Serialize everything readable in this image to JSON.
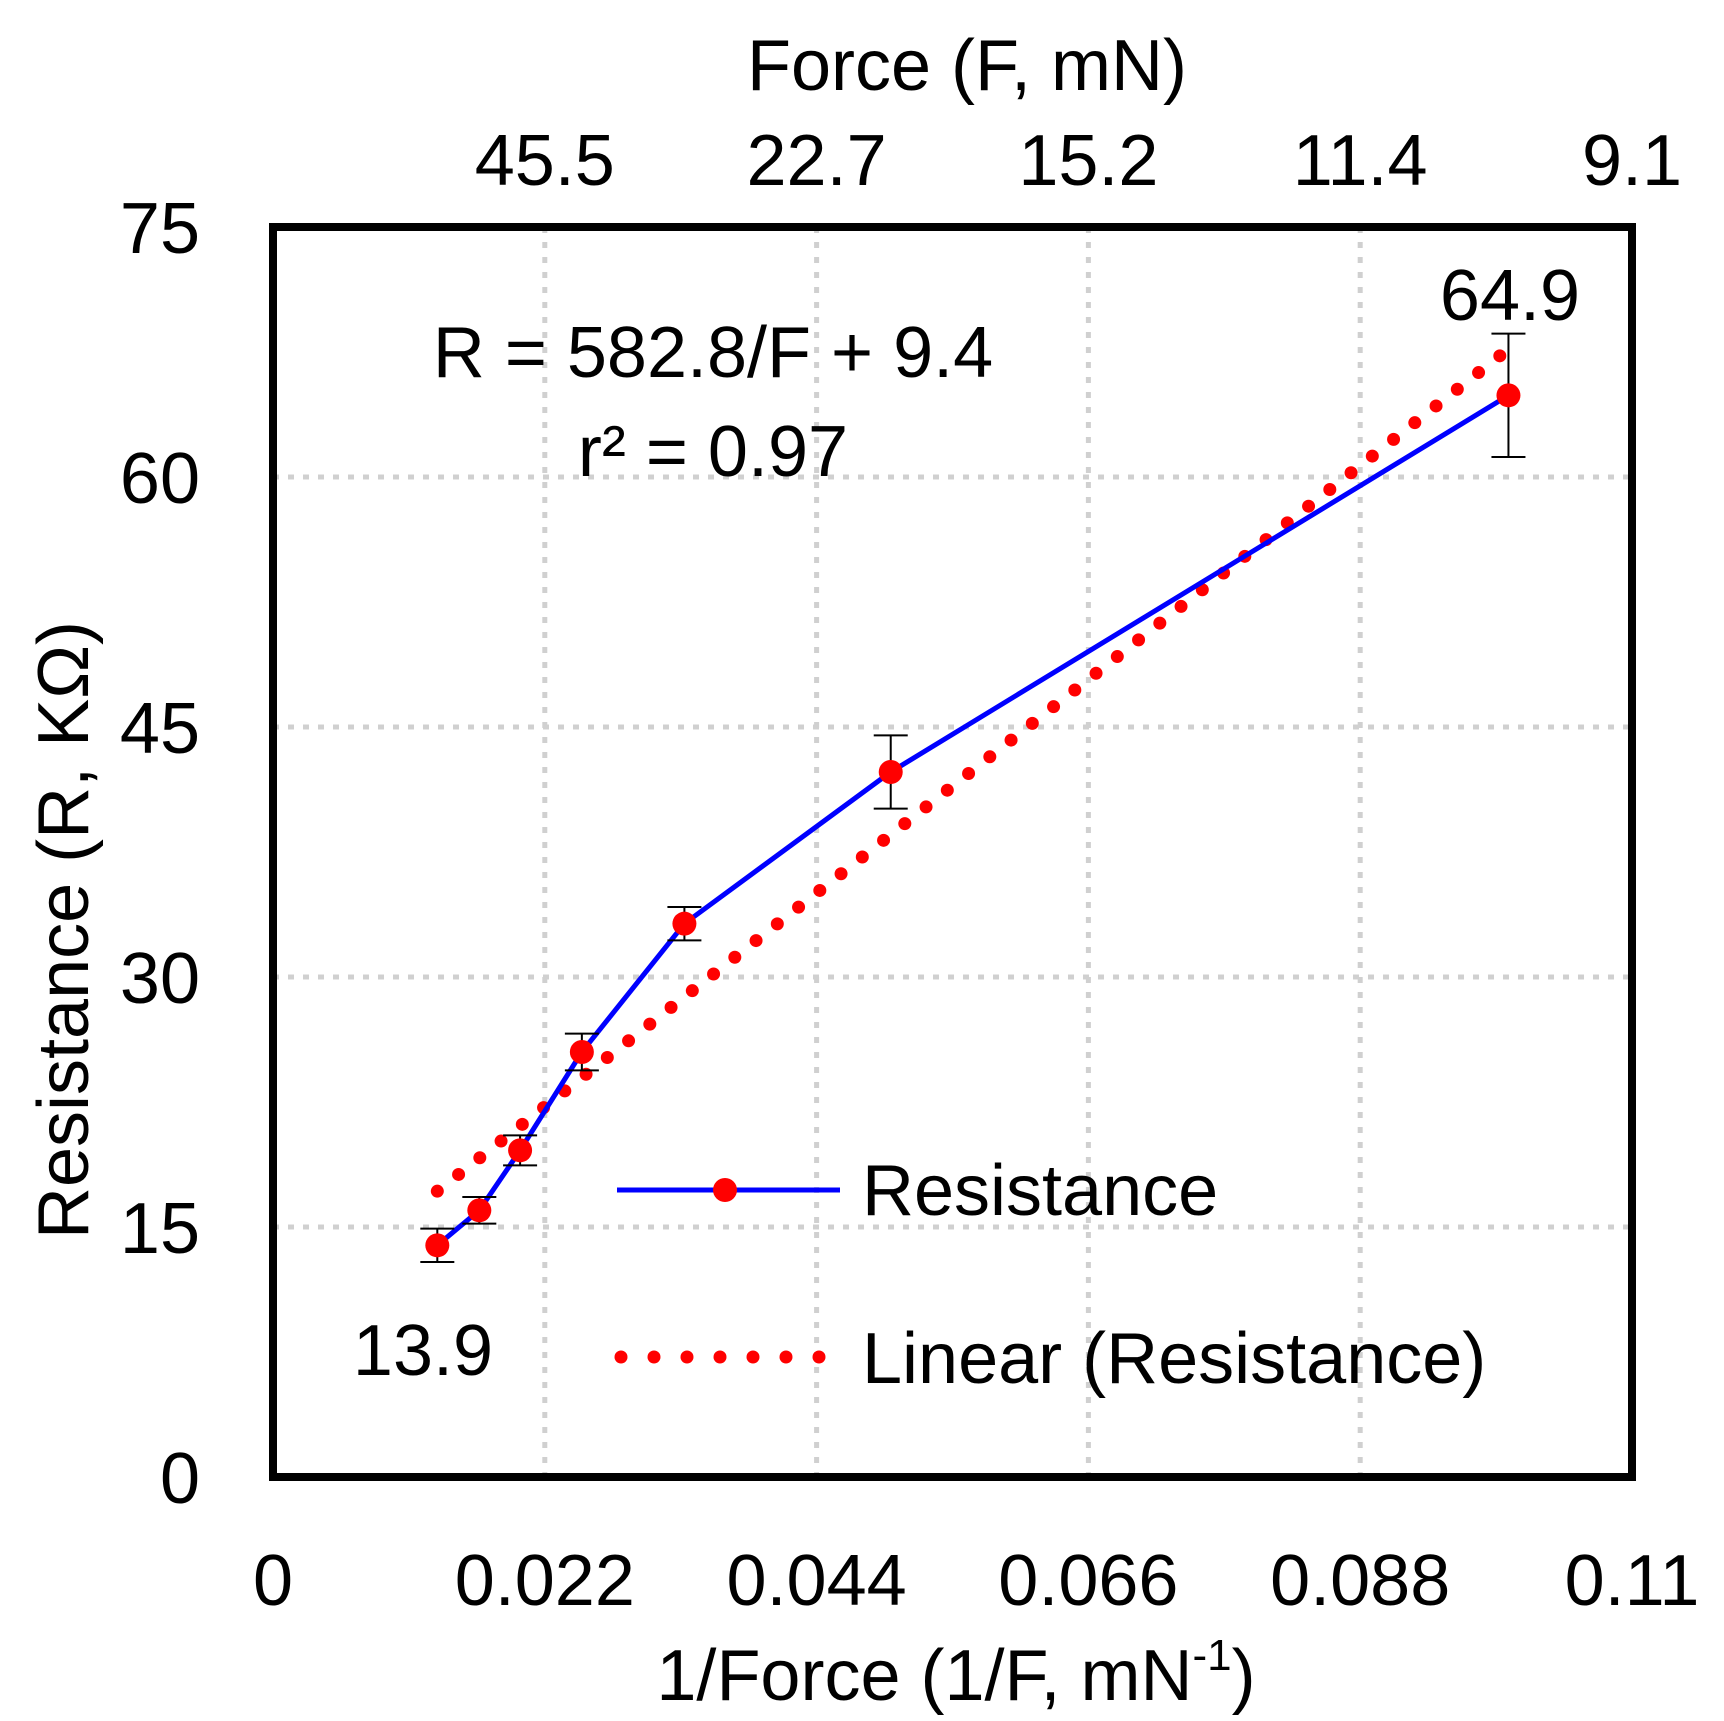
{
  "chart_data": {
    "type": "line",
    "xlabel_prefix": "1/Force (1/F, mN",
    "xlabel_sup": "-1",
    "xlabel_suffix": ")",
    "ylabel": "Resistance (R, KΩ)",
    "top_axis_label": "Force (F, mN)",
    "xlim": [
      0,
      0.11
    ],
    "ylim": [
      0,
      75
    ],
    "x_ticks": [
      0,
      0.022,
      0.044,
      0.066,
      0.088,
      0.11
    ],
    "x_tick_labels": [
      "0",
      "0.022",
      "0.044",
      "0.066",
      "0.088",
      "0.11"
    ],
    "y_ticks": [
      0,
      15,
      30,
      45,
      60,
      75
    ],
    "y_tick_labels": [
      "0",
      "15",
      "30",
      "45",
      "60",
      "75"
    ],
    "top_ticks_x": [
      0.022,
      0.044,
      0.066,
      0.088,
      0.11
    ],
    "top_tick_labels": [
      "45.5",
      "22.7",
      "15.2",
      "11.4",
      "9.1"
    ],
    "grid": true,
    "series": [
      {
        "name": "Resistance",
        "color": "#0000ff",
        "marker_color": "#ff0000",
        "x": [
          0.0133,
          0.0167,
          0.02,
          0.025,
          0.0333,
          0.05,
          0.1
        ],
        "y": [
          13.9,
          16.0,
          19.6,
          25.5,
          33.2,
          42.3,
          64.9
        ],
        "err": [
          1.0,
          0.8,
          0.9,
          1.1,
          1.0,
          2.2,
          3.7
        ]
      },
      {
        "name": "Linear (Resistance)",
        "color": "#ff0000",
        "style": "dotted",
        "x": [
          0.0133,
          0.0993
        ],
        "y": [
          17.15,
          67.27
        ]
      }
    ],
    "annotations": {
      "equation": "R = 582.8/F + 9.4",
      "r2": "r² = 0.97",
      "first_label": "13.9",
      "last_label": "64.9"
    },
    "legend_position": "lower-right"
  }
}
